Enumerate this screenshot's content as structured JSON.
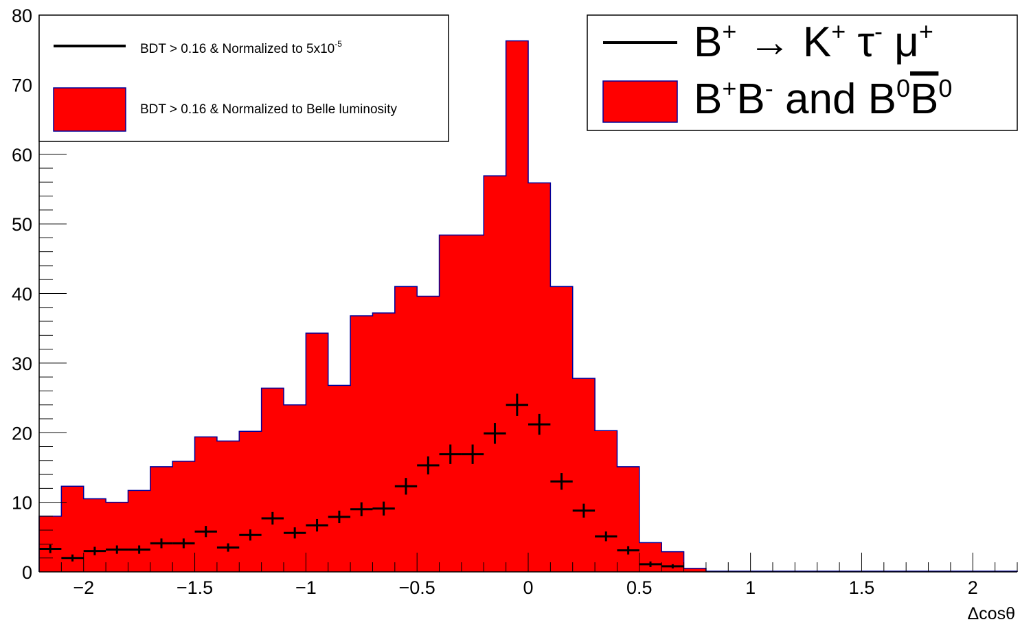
{
  "chart_data": {
    "type": "bar",
    "xlabel": "Δcosθ",
    "ylabel": "",
    "xlim": [
      -2.2,
      2.2
    ],
    "ylim": [
      0,
      80
    ],
    "x_ticks": [
      "−2",
      "−1.5",
      "−1",
      "−0.5",
      "0",
      "0.5",
      "1",
      "1.5",
      "2"
    ],
    "y_ticks": [
      "0",
      "10",
      "20",
      "30",
      "40",
      "50",
      "60",
      "70",
      "80"
    ],
    "bin_width": 0.1,
    "series": [
      {
        "name": "BDT > 0.16 & Normalized to Belle luminosity",
        "style": "filled-histogram",
        "color": "#ff0000",
        "edge_color": "#000099",
        "bin_low_edges": [
          -2.2,
          -2.1,
          -2.0,
          -1.9,
          -1.8,
          -1.7,
          -1.6,
          -1.5,
          -1.4,
          -1.3,
          -1.2,
          -1.1,
          -1.0,
          -0.9,
          -0.8,
          -0.7,
          -0.6,
          -0.5,
          -0.4,
          -0.3,
          -0.2,
          -0.1,
          0.0,
          0.1,
          0.2,
          0.3,
          0.4,
          0.5,
          0.6,
          0.7,
          0.8,
          0.9,
          1.0,
          1.1,
          1.2,
          1.3,
          1.4,
          1.5,
          1.6,
          1.7,
          1.8,
          1.9,
          2.0,
          2.1
        ],
        "values": [
          8.0,
          12.3,
          10.5,
          10.0,
          11.7,
          15.1,
          15.9,
          19.4,
          18.8,
          20.2,
          26.4,
          24.0,
          34.3,
          26.8,
          36.8,
          37.2,
          41.0,
          39.6,
          48.4,
          48.4,
          56.9,
          76.3,
          55.9,
          41.0,
          27.8,
          20.3,
          15.1,
          4.2,
          2.9,
          0.5,
          0.1,
          0.1,
          0.1,
          0.1,
          0.1,
          0.1,
          0.1,
          0.1,
          0.1,
          0.1,
          0.1,
          0.1,
          0.1,
          0.1
        ]
      },
      {
        "name": "BDT > 0.16 & Normalized to 5x10⁻⁵",
        "style": "error-bars",
        "color": "#000000",
        "bin_centers": [
          -2.15,
          -2.05,
          -1.95,
          -1.85,
          -1.75,
          -1.65,
          -1.55,
          -1.45,
          -1.35,
          -1.25,
          -1.15,
          -1.05,
          -0.95,
          -0.85,
          -0.75,
          -0.65,
          -0.55,
          -0.45,
          -0.35,
          -0.25,
          -0.15,
          -0.05,
          0.05,
          0.15,
          0.25,
          0.35,
          0.45,
          0.55,
          0.65
        ],
        "values": [
          3.3,
          2.0,
          3.0,
          3.2,
          3.2,
          4.1,
          4.1,
          5.8,
          3.5,
          5.3,
          7.7,
          5.6,
          6.7,
          7.9,
          9.0,
          9.1,
          12.3,
          15.3,
          16.9,
          16.9,
          19.9,
          24.0,
          21.2,
          13.0,
          8.8,
          5.1,
          3.1,
          1.1,
          0.8
        ],
        "errors": [
          0.6,
          0.5,
          0.6,
          0.6,
          0.6,
          0.7,
          0.7,
          0.8,
          0.6,
          0.8,
          0.9,
          0.8,
          0.9,
          0.9,
          1.0,
          1.0,
          1.2,
          1.3,
          1.4,
          1.4,
          1.5,
          1.6,
          1.5,
          1.2,
          1.0,
          0.7,
          0.6,
          0.4,
          0.3
        ]
      }
    ],
    "legend_left": {
      "placement": "top-left",
      "entries": [
        {
          "label_main": "BDT > 0.16 & Normalized to 5x10",
          "label_sup": "-5",
          "symbol": "line",
          "color": "#000000"
        },
        {
          "label_main": "BDT > 0.16 & Normalized to Belle luminosity",
          "symbol": "box",
          "color": "#ff0000"
        }
      ]
    },
    "legend_right": {
      "placement": "top-right",
      "entries": [
        {
          "symbol": "line",
          "color": "#000000",
          "parts": [
            {
              "t": "B"
            },
            {
              "t": "+",
              "sup": true
            },
            {
              "t": " → K"
            },
            {
              "t": "+",
              "sup": true
            },
            {
              "t": " τ"
            },
            {
              "t": "-",
              "sup": true
            },
            {
              "t": " μ"
            },
            {
              "t": "+",
              "sup": true
            }
          ]
        },
        {
          "symbol": "box",
          "color": "#ff0000",
          "parts": [
            {
              "t": "B"
            },
            {
              "t": "+",
              "sup": true
            },
            {
              "t": "B"
            },
            {
              "t": "-",
              "sup": true
            },
            {
              "t": " and B"
            },
            {
              "t": "0",
              "sup": true
            },
            {
              "t": "B",
              "bar": true
            },
            {
              "t": "0",
              "sup": true
            }
          ]
        }
      ]
    }
  }
}
